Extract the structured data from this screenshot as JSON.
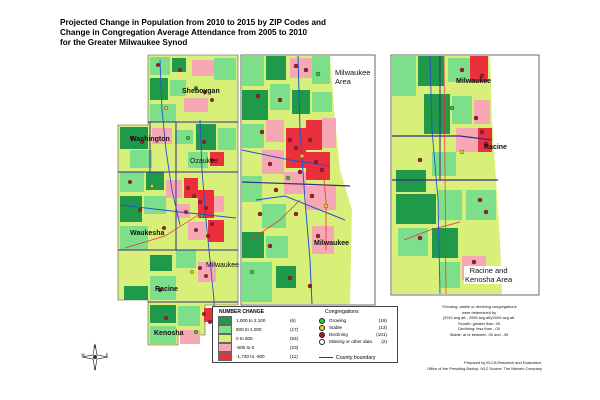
{
  "title": {
    "line1": "Projected Change in Population from 2010 to 2015 by ZIP Codes and",
    "line2": "Change in Congregation Average Attendance from 2005 to 2010",
    "line3": "for the Greater Milwaukee Synod"
  },
  "map_labels": {
    "sheboygan": "Sheboygan",
    "washington": "Washington",
    "ozaukee": "Ozaukee",
    "waukesha": "Waukesha",
    "milwaukee_county": "Milwaukee",
    "racine": "Racine",
    "kenosha": "Kenosha",
    "inset_milwaukee_line1": "Milwaukee",
    "inset_milwaukee_line2": "Area",
    "inset_milwaukee_county": "Milwaukee",
    "inset_racine_city": "Racine",
    "inset_racine_line1": "Racine and",
    "inset_racine_line2": "Kenosha Area",
    "inset_milwaukee_north": "Milwaukee"
  },
  "legend": {
    "number_change_title": "NUMBER CHANGE",
    "ranges": [
      {
        "label": "1,000  to  2,100",
        "count": "(6)",
        "color": "#1e9a4a"
      },
      {
        "label": "500  to  1,000",
        "count": "(17)",
        "color": "#7ddf8a"
      },
      {
        "label": "0  to  500",
        "count": "(54)",
        "color": "#d8f07a"
      },
      {
        "label": "-500  to  0",
        "count": "(23)",
        "color": "#f6a9b4"
      },
      {
        "label": "-1,730  to  -500",
        "count": "(11)",
        "color": "#ec2f3c"
      }
    ],
    "congregations_title": "Congregations",
    "congregations": [
      {
        "label": "Growing",
        "count": "(19)",
        "color": "#33cc33"
      },
      {
        "label": "Stable",
        "count": "(13)",
        "color": "#f0d21e"
      },
      {
        "label": "Declining",
        "count": "(101)",
        "color": "#b3162b"
      },
      {
        "label": "Missing or other data",
        "count": "(2)",
        "color": "#ffffff"
      }
    ],
    "county_boundary": "County boundary"
  },
  "notes": {
    "line1": "*Growing, stable or declining congregations",
    "line2": "were determined by",
    "line3": "(2010 avg att - 2005 avg att)/2005 avg att.",
    "line4": "Growth:  greater than .05",
    "line5": "Declining:  less than -.05",
    "line6": "Stable:  at or between .05 and -.05"
  },
  "credit": {
    "line1": "Prepared by ELCA Research and Evaluation,",
    "line2": "Office of the Presiding Bishop.  9/12 Source: The Nielsen Company"
  },
  "compass": {
    "n": "N",
    "s": "S",
    "e": "E",
    "w": "W"
  },
  "colors": {
    "dark_green": "#1e9a4a",
    "light_green": "#7ddf8a",
    "yellow_green": "#d8f07a",
    "pink": "#f6a9b4",
    "red": "#ec2f3c",
    "boundary": "#3b2a86",
    "road": "#2a4fd0"
  }
}
